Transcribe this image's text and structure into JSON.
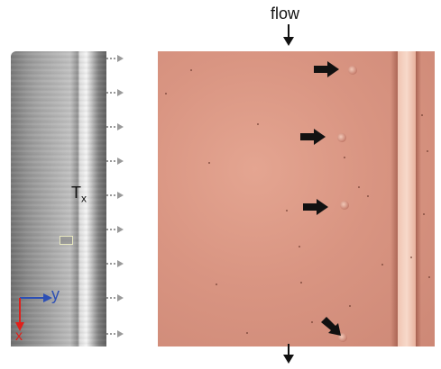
{
  "figure": {
    "flow_label": "flow",
    "tx_label_main": "T",
    "tx_label_sub": "x",
    "axis": {
      "y_label": "y",
      "x_label": "x",
      "y_color": "#2c4fb5",
      "x_color": "#e0201b"
    },
    "colors": {
      "micro_background": "#d99582",
      "arrow": "#111111",
      "dash_arrow": "#9a9a9a"
    }
  }
}
